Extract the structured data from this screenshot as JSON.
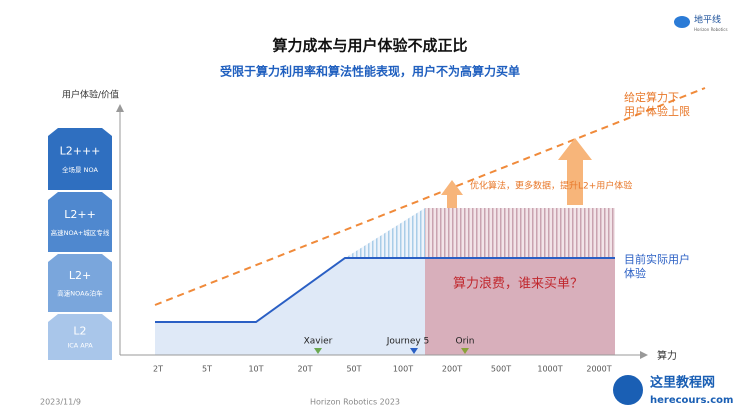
{
  "header": {
    "title": "算力成本与用户体验不成正比",
    "subtitle": "受限于算力利用率和算法性能表现，用户不为高算力买单",
    "logo": "地平线",
    "logo_sub": "Horizon Robotics"
  },
  "axes": {
    "y_label": "用户体验/价值",
    "x_label": "算力",
    "x_ticks": [
      "2T",
      "5T",
      "10T",
      "20T",
      "50T",
      "100T",
      "200T",
      "500T",
      "1000T",
      "2000T"
    ]
  },
  "levels": [
    {
      "name": "L2+++",
      "desc": "全场景 NOA"
    },
    {
      "name": "L2++",
      "desc": "高速NOA+城区专线"
    },
    {
      "name": "L2+",
      "desc": "高速NOA&泊车"
    },
    {
      "name": "L2",
      "desc": "ICA APA"
    }
  ],
  "chips": [
    "Xavier",
    "Journey 5",
    "Orin"
  ],
  "annotations": {
    "upper_limit": "给定算力下\n用户体验上限",
    "improve": "优化算法，更多数据，提升L2+用户体验",
    "actual": "目前实际用户\n体验",
    "waste": "算力浪费，谁来买单？"
  },
  "footer": {
    "date": "2023/11/9",
    "company": "Horizon Robotics 2023"
  },
  "watermark": {
    "name": "这里教程网",
    "url": "herecours.com"
  }
}
